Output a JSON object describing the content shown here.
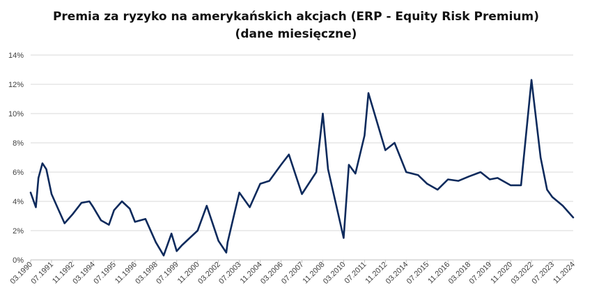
{
  "chart_data": {
    "type": "line",
    "title": "Premia za ryzyko na amerykańskich akcjach (ERP - Equity Risk Premium)",
    "subtitle": "(dane miesięczne)",
    "xlabel": "",
    "ylabel": "",
    "ylim": [
      0,
      14
    ],
    "grid": true,
    "yticks": [
      "0%",
      "2%",
      "4%",
      "6%",
      "8%",
      "10%",
      "12%",
      "14%"
    ],
    "xticks": [
      "03.1990",
      "07.1991",
      "11.1992",
      "03.1994",
      "07.1995",
      "11.1996",
      "03.1998",
      "07.1999",
      "11.2000",
      "03.2002",
      "07.2003",
      "11.2004",
      "03.2006",
      "07.2007",
      "11.2008",
      "03.2010",
      "07.2011",
      "11.2012",
      "03.2014",
      "07.2015",
      "11.2016",
      "03.2018",
      "07.2019",
      "11.2020",
      "03.2022",
      "07.2023",
      "11.2024"
    ],
    "series_color": "#0d2a5c",
    "series": [
      {
        "x": [
          "03.1990",
          "07.1990",
          "09.1990",
          "12.1990",
          "03.1991",
          "07.1991",
          "12.1991",
          "05.1992",
          "11.1992",
          "06.1993",
          "12.1993",
          "03.1994",
          "09.1994",
          "03.1995",
          "07.1995",
          "01.1996",
          "07.1996",
          "11.1996",
          "07.1997",
          "03.1998",
          "09.1998",
          "03.1999",
          "07.1999",
          "11.1999",
          "11.2000",
          "06.2001",
          "03.2002",
          "09.2002",
          "10.2002",
          "07.2003",
          "03.2004",
          "11.2004",
          "06.2005",
          "03.2006",
          "09.2006",
          "07.2007",
          "06.2008",
          "11.2008",
          "03.2009",
          "03.2010",
          "07.2010",
          "12.2010",
          "07.2011",
          "10.2011",
          "11.2012",
          "06.2013",
          "03.2014",
          "12.2014",
          "07.2015",
          "03.2016",
          "11.2016",
          "07.2017",
          "03.2018",
          "12.2018",
          "07.2019",
          "01.2020",
          "11.2020",
          "07.2021",
          "03.2022",
          "10.2022",
          "03.2023",
          "07.2023",
          "03.2024",
          "11.2024"
        ],
        "values": [
          4.6,
          3.6,
          5.6,
          6.6,
          6.2,
          4.5,
          3.5,
          2.5,
          3.1,
          3.9,
          4.0,
          3.6,
          2.7,
          2.4,
          3.4,
          4.0,
          3.5,
          2.6,
          2.8,
          1.2,
          0.3,
          1.8,
          0.6,
          1.0,
          2.0,
          3.7,
          1.3,
          0.5,
          1.2,
          4.6,
          3.6,
          5.2,
          5.4,
          6.5,
          7.2,
          4.5,
          6.0,
          10.0,
          6.2,
          1.5,
          6.5,
          5.9,
          8.5,
          11.4,
          7.5,
          8.0,
          6.0,
          5.8,
          5.2,
          4.8,
          5.5,
          5.4,
          5.7,
          6.0,
          5.5,
          5.6,
          5.1,
          5.1,
          12.3,
          7.0,
          4.8,
          4.3,
          3.7,
          2.9
        ]
      }
    ]
  }
}
